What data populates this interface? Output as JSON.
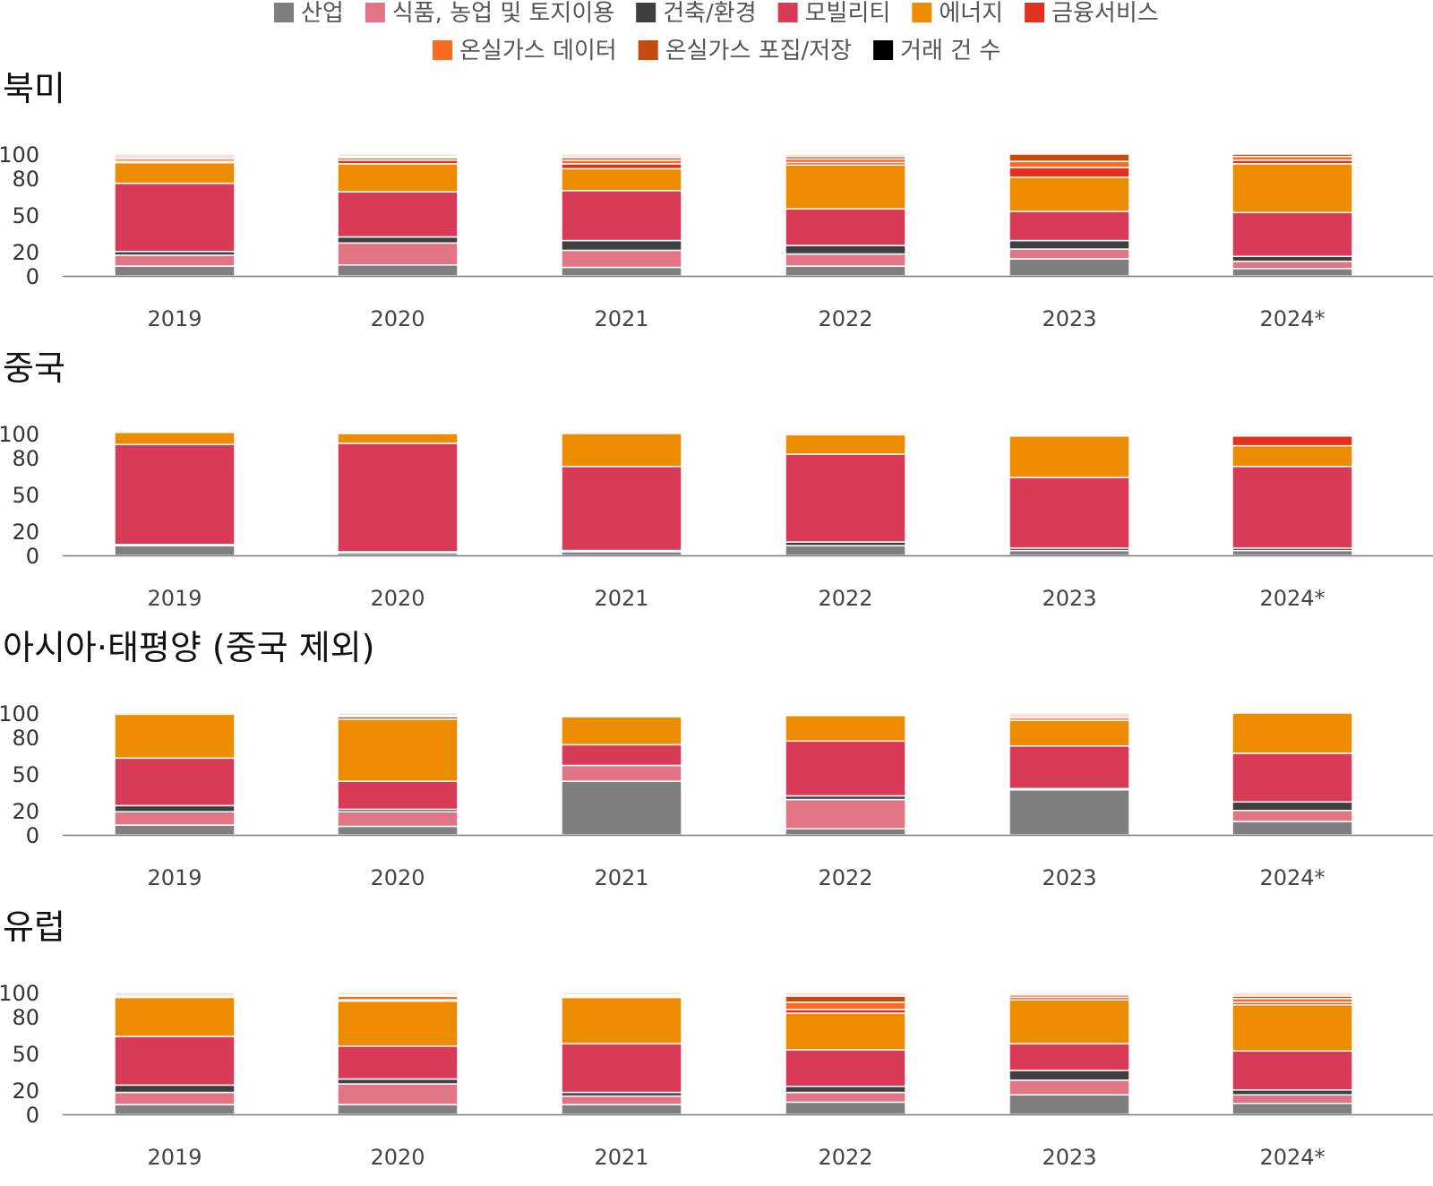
{
  "chart_data": {
    "type": "bar",
    "stacked": true,
    "legend_position": "top",
    "grid": false,
    "legend": [
      {
        "key": "industry",
        "label": "산업",
        "color": "#7f7f7f"
      },
      {
        "key": "food",
        "label": "식품, 농업 및 토지이용",
        "color": "#e27585"
      },
      {
        "key": "construction",
        "label": "건축/환경",
        "color": "#3f3f3f"
      },
      {
        "key": "mobility",
        "label": "모빌리티",
        "color": "#d93a58"
      },
      {
        "key": "energy",
        "label": "에너지",
        "color": "#ee8c00"
      },
      {
        "key": "finance",
        "label": "금융서비스",
        "color": "#e3311f"
      },
      {
        "key": "ghg_data",
        "label": "온실가스 데이터",
        "color": "#fc6a21"
      },
      {
        "key": "ccs",
        "label": "온실가스 포집/저장",
        "color": "#c94a0d"
      },
      {
        "key": "deals",
        "label": "거래 건 수",
        "color": "#000000"
      }
    ],
    "y_ticks": [
      "0",
      "20",
      "50",
      "80",
      "100"
    ],
    "ylim": [
      0,
      100
    ],
    "categories": [
      "2019",
      "2020",
      "2021",
      "2022",
      "2023",
      "2024*"
    ],
    "panels": [
      {
        "title": "북미",
        "bars": [
          {
            "industry": 8,
            "food": 9,
            "construction": 3,
            "mobility": 56,
            "energy": 17,
            "finance": 1,
            "ghg_data": 2,
            "ccs": 0
          },
          {
            "industry": 9,
            "food": 18,
            "construction": 5,
            "mobility": 37,
            "energy": 23,
            "finance": 3,
            "ghg_data": 2,
            "ccs": 1
          },
          {
            "industry": 7,
            "food": 14,
            "construction": 8,
            "mobility": 41,
            "energy": 18,
            "finance": 4,
            "ghg_data": 3,
            "ccs": 2
          },
          {
            "industry": 8,
            "food": 10,
            "construction": 7,
            "mobility": 30,
            "energy": 36,
            "finance": 2,
            "ghg_data": 3,
            "ccs": 2
          },
          {
            "industry": 14,
            "food": 8,
            "construction": 7,
            "mobility": 24,
            "energy": 28,
            "finance": 8,
            "ghg_data": 5,
            "ccs": 6
          },
          {
            "industry": 6,
            "food": 6,
            "construction": 4,
            "mobility": 36,
            "energy": 40,
            "finance": 3,
            "ghg_data": 3,
            "ccs": 2
          }
        ]
      },
      {
        "title": "중국",
        "bars": [
          {
            "industry": 8,
            "food": 0,
            "construction": 1,
            "mobility": 82,
            "energy": 10,
            "finance": 0,
            "ghg_data": 0,
            "ccs": 0
          },
          {
            "industry": 2,
            "food": 0,
            "construction": 1,
            "mobility": 89,
            "energy": 8,
            "finance": 0,
            "ghg_data": 0,
            "ccs": 0
          },
          {
            "industry": 3,
            "food": 0,
            "construction": 1,
            "mobility": 69,
            "energy": 27,
            "finance": 0,
            "ghg_data": 0,
            "ccs": 0
          },
          {
            "industry": 8,
            "food": 0,
            "construction": 3,
            "mobility": 72,
            "energy": 16,
            "finance": 0,
            "ghg_data": 0,
            "ccs": 0
          },
          {
            "industry": 4,
            "food": 0,
            "construction": 2,
            "mobility": 58,
            "energy": 34,
            "finance": 0,
            "ghg_data": 1,
            "ccs": 0
          },
          {
            "industry": 4,
            "food": 0,
            "construction": 2,
            "mobility": 67,
            "energy": 17,
            "finance": 8,
            "ghg_data": 1,
            "ccs": 0
          }
        ]
      },
      {
        "title": "아시아·태평양 (중국 제외)",
        "bars": [
          {
            "industry": 8,
            "food": 11,
            "construction": 5,
            "mobility": 39,
            "energy": 36,
            "finance": 0,
            "ghg_data": 0,
            "ccs": 0
          },
          {
            "industry": 7,
            "food": 12,
            "construction": 2,
            "mobility": 23,
            "energy": 51,
            "finance": 2,
            "ghg_data": 1,
            "ccs": 0
          },
          {
            "industry": 44,
            "food": 13,
            "construction": 0,
            "mobility": 17,
            "energy": 23,
            "finance": 1,
            "ghg_data": 1,
            "ccs": 0
          },
          {
            "industry": 5,
            "food": 24,
            "construction": 3,
            "mobility": 45,
            "energy": 21,
            "finance": 0,
            "ghg_data": 1,
            "ccs": 0
          },
          {
            "industry": 37,
            "food": 0,
            "construction": 1,
            "mobility": 35,
            "energy": 21,
            "finance": 0,
            "ghg_data": 2,
            "ccs": 0
          },
          {
            "industry": 11,
            "food": 9,
            "construction": 7,
            "mobility": 40,
            "energy": 33,
            "finance": 0,
            "ghg_data": 0,
            "ccs": 0
          }
        ]
      },
      {
        "title": "유럽",
        "bars": [
          {
            "industry": 8,
            "food": 10,
            "construction": 6,
            "mobility": 40,
            "energy": 32,
            "finance": 0,
            "ghg_data": 1,
            "ccs": 0
          },
          {
            "industry": 8,
            "food": 17,
            "construction": 4,
            "mobility": 27,
            "energy": 37,
            "finance": 1,
            "ghg_data": 3,
            "ccs": 1
          },
          {
            "industry": 8,
            "food": 7,
            "construction": 3,
            "mobility": 40,
            "energy": 38,
            "finance": 1,
            "ghg_data": 1,
            "ccs": 0
          },
          {
            "industry": 10,
            "food": 8,
            "construction": 5,
            "mobility": 30,
            "energy": 30,
            "finance": 3,
            "ghg_data": 6,
            "ccs": 5
          },
          {
            "industry": 16,
            "food": 12,
            "construction": 8,
            "mobility": 22,
            "energy": 36,
            "finance": 2,
            "ghg_data": 2,
            "ccs": 1
          },
          {
            "industry": 9,
            "food": 7,
            "construction": 4,
            "mobility": 32,
            "energy": 38,
            "finance": 2,
            "ghg_data": 3,
            "ccs": 2
          }
        ]
      }
    ]
  }
}
